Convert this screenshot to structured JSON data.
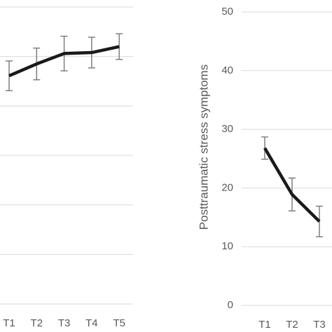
{
  "chart_data": [
    {
      "type": "line",
      "categories": [
        "T1",
        "T2",
        "T3",
        "T4",
        "T5"
      ],
      "series": [
        {
          "color": "#1a1a1a",
          "values": [
            4.61,
            4.85,
            5.06,
            5.08,
            5.2
          ],
          "errors": [
            0.3,
            0.32,
            0.35,
            0.31,
            0.26
          ]
        }
      ],
      "ylim": [
        0,
        6
      ],
      "gridlines": [
        0,
        1,
        2,
        3,
        4,
        5,
        6
      ],
      "grid": true
    },
    {
      "type": "line",
      "ylabel": "Posttraumatic stress symptoms",
      "categories": [
        "T1",
        "T2",
        "T3"
      ],
      "series": [
        {
          "color": "#1a1a1a",
          "values": [
            26.8,
            18.9,
            14.3
          ],
          "errors": [
            1.9,
            2.8,
            2.6
          ]
        }
      ],
      "ylim": [
        0,
        50
      ],
      "yticks": [
        0,
        10,
        20,
        30,
        40,
        50
      ],
      "grid": true
    }
  ]
}
